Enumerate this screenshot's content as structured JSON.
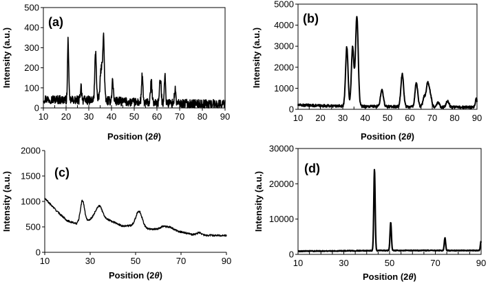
{
  "chart_data": [
    {
      "id": "a",
      "type": "line",
      "panel_label": "(a)",
      "xlabel": "Position (2θ)",
      "ylabel": "Intensity (a.u.)",
      "xlim": [
        10,
        90
      ],
      "ylim": [
        0,
        500
      ],
      "x_ticks": [
        "10",
        "20",
        "30",
        "40",
        "50",
        "60",
        "70",
        "80",
        "90"
      ],
      "y_ticks": [
        "0",
        "100",
        "200",
        "300",
        "400",
        "500"
      ],
      "framed": true,
      "baseline": [
        [
          10,
          45
        ],
        [
          20,
          40
        ],
        [
          30,
          38
        ],
        [
          40,
          35
        ],
        [
          50,
          28
        ],
        [
          60,
          25
        ],
        [
          70,
          22
        ],
        [
          80,
          20
        ],
        [
          90,
          20
        ]
      ],
      "noise": 22,
      "peaks": [
        {
          "x": 20.9,
          "y": 300,
          "w": 0.25
        },
        {
          "x": 26.6,
          "y": 70,
          "w": 0.3
        },
        {
          "x": 33.0,
          "y": 240,
          "w": 0.35
        },
        {
          "x": 35.5,
          "y": 160,
          "w": 0.5
        },
        {
          "x": 36.5,
          "y": 300,
          "w": 0.35
        },
        {
          "x": 40.5,
          "y": 105,
          "w": 0.3
        },
        {
          "x": 53.5,
          "y": 130,
          "w": 0.3
        },
        {
          "x": 57.5,
          "y": 110,
          "w": 0.3
        },
        {
          "x": 61.5,
          "y": 120,
          "w": 0.35
        },
        {
          "x": 63.5,
          "y": 135,
          "w": 0.3
        },
        {
          "x": 68.0,
          "y": 70,
          "w": 0.3
        }
      ]
    },
    {
      "id": "b",
      "type": "line",
      "panel_label": "(b)",
      "xlabel": "Position (2θ)",
      "ylabel": "Intensity (a.u.)",
      "xlim": [
        10,
        90
      ],
      "ylim": [
        0,
        5000
      ],
      "x_ticks": [
        "10",
        "20",
        "30",
        "40",
        "50",
        "60",
        "70",
        "80",
        "90"
      ],
      "y_ticks": [
        "0",
        "1000",
        "2000",
        "3000",
        "4000",
        "5000"
      ],
      "framed": true,
      "baseline": [
        [
          10,
          200
        ],
        [
          20,
          170
        ],
        [
          30,
          150
        ],
        [
          40,
          140
        ],
        [
          50,
          130
        ],
        [
          60,
          120
        ],
        [
          70,
          110
        ],
        [
          80,
          100
        ],
        [
          90,
          100
        ]
      ],
      "noise": 60,
      "peaks": [
        {
          "x": 31.8,
          "y": 2800,
          "w": 0.55
        },
        {
          "x": 34.4,
          "y": 2800,
          "w": 0.55
        },
        {
          "x": 36.3,
          "y": 4300,
          "w": 0.6
        },
        {
          "x": 47.5,
          "y": 850,
          "w": 0.6
        },
        {
          "x": 56.6,
          "y": 1550,
          "w": 0.6
        },
        {
          "x": 62.9,
          "y": 1150,
          "w": 0.6
        },
        {
          "x": 66.4,
          "y": 450,
          "w": 0.6
        },
        {
          "x": 67.9,
          "y": 1050,
          "w": 0.6
        },
        {
          "x": 69.1,
          "y": 600,
          "w": 0.6
        },
        {
          "x": 72.6,
          "y": 230,
          "w": 0.6
        },
        {
          "x": 76.9,
          "y": 300,
          "w": 0.6
        },
        {
          "x": 89.7,
          "y": 400,
          "w": 0.4
        }
      ]
    },
    {
      "id": "c",
      "type": "line",
      "panel_label": "(c)",
      "xlabel": "Position (2θ)",
      "ylabel": "Intensity (a.u.)",
      "xlim": [
        10,
        90
      ],
      "ylim": [
        0,
        2000
      ],
      "x_ticks": [
        "10",
        "30",
        "50",
        "70",
        "90"
      ],
      "y_ticks": [
        "0",
        "500",
        "1000",
        "1500",
        "2000"
      ],
      "framed": false,
      "baseline": [
        [
          10,
          1060
        ],
        [
          13,
          920
        ],
        [
          16,
          780
        ],
        [
          20,
          620
        ],
        [
          24,
          560
        ],
        [
          28,
          600
        ],
        [
          32,
          700
        ],
        [
          38,
          640
        ],
        [
          44,
          520
        ],
        [
          48,
          520
        ],
        [
          55,
          460
        ],
        [
          62,
          450
        ],
        [
          68,
          420
        ],
        [
          75,
          350
        ],
        [
          80,
          335
        ],
        [
          90,
          330
        ]
      ],
      "noise": 18,
      "peaks": [
        {
          "x": 26.6,
          "y": 430,
          "w": 0.9
        },
        {
          "x": 34.0,
          "y": 230,
          "w": 1.4
        },
        {
          "x": 51.5,
          "y": 320,
          "w": 1.4
        },
        {
          "x": 62.5,
          "y": 60,
          "w": 1.5
        },
        {
          "x": 65.5,
          "y": 50,
          "w": 1.2
        },
        {
          "x": 78.0,
          "y": 45,
          "w": 1.0
        }
      ]
    },
    {
      "id": "d",
      "type": "line",
      "panel_label": "(d)",
      "xlabel": "Position (2θ)",
      "ylabel": "Intensity (a.u.)",
      "xlim": [
        10,
        90
      ],
      "ylim": [
        0,
        30000
      ],
      "x_ticks": [
        "10",
        "30",
        "50",
        "70",
        "90"
      ],
      "y_ticks": [
        "0",
        "10000",
        "20000",
        "30000"
      ],
      "framed": true,
      "baseline": [
        [
          10,
          900
        ],
        [
          30,
          1000
        ],
        [
          50,
          1100
        ],
        [
          70,
          1100
        ],
        [
          90,
          1100
        ]
      ],
      "noise": 120,
      "peaks": [
        {
          "x": 43.4,
          "y": 23000,
          "w": 0.3
        },
        {
          "x": 50.5,
          "y": 8000,
          "w": 0.3
        },
        {
          "x": 74.2,
          "y": 3500,
          "w": 0.3
        },
        {
          "x": 89.9,
          "y": 2500,
          "w": 0.25
        }
      ]
    }
  ]
}
